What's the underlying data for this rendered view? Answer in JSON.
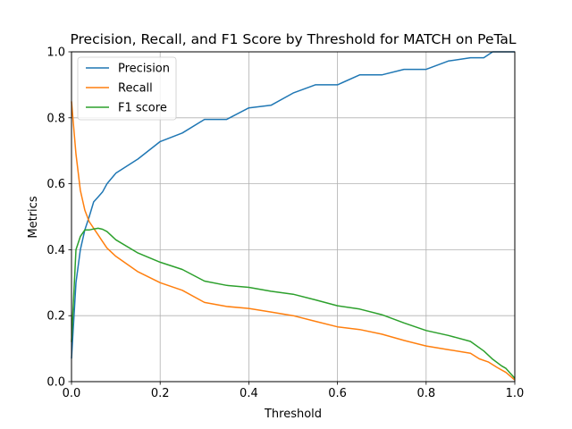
{
  "chart_data": {
    "type": "line",
    "title": "Precision, Recall, and F1 Score by Threshold for MATCH on PeTaL",
    "xlabel": "Threshold",
    "ylabel": "Metrics",
    "xlim": [
      0,
      1
    ],
    "ylim": [
      0,
      1
    ],
    "xticks": [
      "0.0",
      "0.2",
      "0.4",
      "0.6",
      "0.8",
      "1.0"
    ],
    "yticks": [
      "0.0",
      "0.2",
      "0.4",
      "0.6",
      "0.8",
      "1.0"
    ],
    "grid": true,
    "legend_position": "upper-left",
    "series": [
      {
        "name": "Precision",
        "color": "#1f77b4",
        "x": [
          0,
          0.01,
          0.02,
          0.03,
          0.04,
          0.05,
          0.06,
          0.07,
          0.08,
          0.1,
          0.15,
          0.2,
          0.25,
          0.3,
          0.35,
          0.4,
          0.45,
          0.5,
          0.55,
          0.6,
          0.65,
          0.7,
          0.75,
          0.8,
          0.85,
          0.9,
          0.93,
          0.95,
          0.97,
          1.0
        ],
        "y": [
          0.07,
          0.3,
          0.4,
          0.46,
          0.5,
          0.545,
          0.56,
          0.575,
          0.6,
          0.632,
          0.675,
          0.728,
          0.754,
          0.795,
          0.795,
          0.83,
          0.838,
          0.875,
          0.9,
          0.9,
          0.93,
          0.93,
          0.947,
          0.947,
          0.972,
          0.982,
          0.982,
          1.0,
          1.0,
          1.0
        ]
      },
      {
        "name": "Recall",
        "color": "#ff7f0e",
        "x": [
          0,
          0.01,
          0.02,
          0.03,
          0.04,
          0.05,
          0.06,
          0.07,
          0.08,
          0.1,
          0.15,
          0.2,
          0.25,
          0.3,
          0.35,
          0.4,
          0.45,
          0.5,
          0.55,
          0.6,
          0.65,
          0.7,
          0.75,
          0.8,
          0.85,
          0.9,
          0.92,
          0.94,
          0.96,
          0.98,
          1.0
        ],
        "y": [
          0.85,
          0.69,
          0.58,
          0.52,
          0.485,
          0.465,
          0.445,
          0.425,
          0.405,
          0.38,
          0.333,
          0.3,
          0.277,
          0.24,
          0.228,
          0.222,
          0.211,
          0.2,
          0.183,
          0.166,
          0.158,
          0.144,
          0.125,
          0.108,
          0.097,
          0.086,
          0.069,
          0.06,
          0.043,
          0.028,
          0.005
        ]
      },
      {
        "name": "F1 score",
        "color": "#2ca02c",
        "x": [
          0,
          0.01,
          0.02,
          0.03,
          0.04,
          0.05,
          0.06,
          0.07,
          0.08,
          0.1,
          0.15,
          0.2,
          0.25,
          0.3,
          0.35,
          0.4,
          0.45,
          0.5,
          0.55,
          0.6,
          0.65,
          0.7,
          0.75,
          0.8,
          0.85,
          0.9,
          0.93,
          0.95,
          0.97,
          0.98,
          1.0
        ],
        "y": [
          0.12,
          0.4,
          0.44,
          0.46,
          0.46,
          0.463,
          0.465,
          0.462,
          0.455,
          0.43,
          0.39,
          0.362,
          0.34,
          0.305,
          0.292,
          0.286,
          0.274,
          0.265,
          0.248,
          0.23,
          0.22,
          0.203,
          0.178,
          0.155,
          0.14,
          0.122,
          0.093,
          0.068,
          0.048,
          0.04,
          0.01
        ]
      }
    ]
  }
}
